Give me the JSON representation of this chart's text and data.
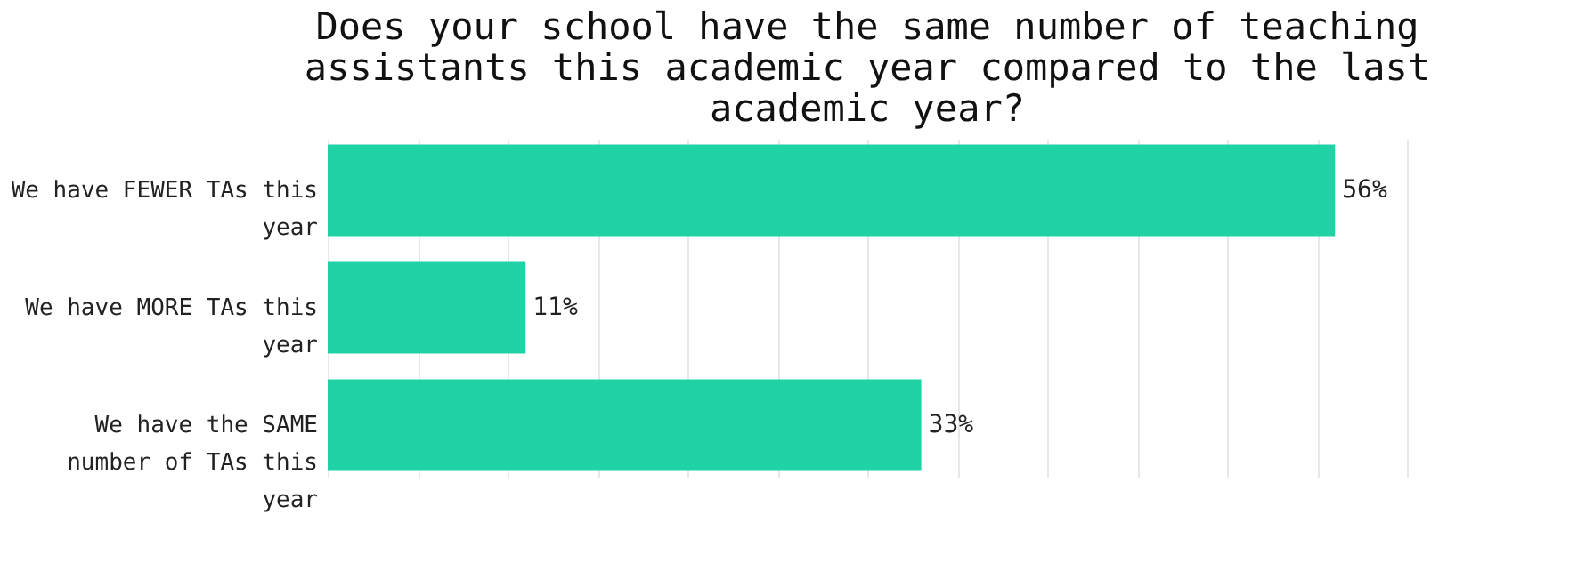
{
  "chart_data": {
    "type": "bar",
    "orientation": "horizontal",
    "title": "Does your school have the same number of teaching assistants this academic year compared to the last academic year?",
    "categories": [
      "We have FEWER TAs this year",
      "We have MORE TAs this year",
      "We have the SAME number of TAs this year"
    ],
    "values": [
      56,
      11,
      33
    ],
    "value_labels": [
      "56%",
      "11%",
      "33%"
    ],
    "color": "#20d3a6",
    "xlim": [
      0,
      60
    ],
    "xticks": [
      {
        "value": 0,
        "label": null
      },
      {
        "value": 5,
        "label": null
      },
      {
        "value": 10,
        "label": null
      },
      {
        "value": 15,
        "label": null
      },
      {
        "value": 20,
        "label": null
      },
      {
        "value": 25,
        "label": null
      },
      {
        "value": 30,
        "label": null
      },
      {
        "value": 35,
        "label": null
      },
      {
        "value": 40,
        "label": null
      },
      {
        "value": 45,
        "label": null
      },
      {
        "value": 50,
        "label": null
      },
      {
        "value": 55,
        "label": null
      },
      {
        "value": 60,
        "label": null
      }
    ],
    "grid": "x",
    "tick_labels": "y"
  }
}
